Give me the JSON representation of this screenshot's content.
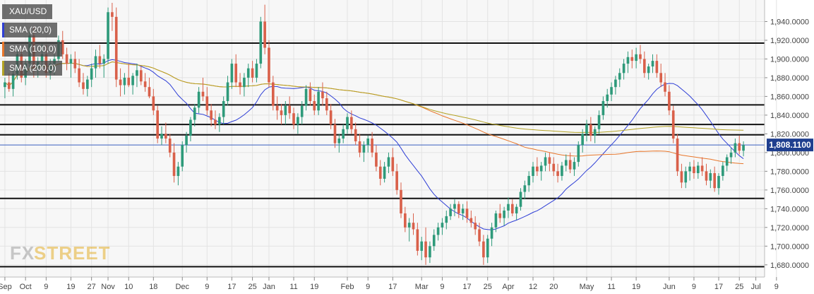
{
  "chart_data": {
    "type": "candlestick",
    "symbol": "XAU/USD",
    "indicators": [
      {
        "name": "SMA (20,0)",
        "color": "#2f3fd6"
      },
      {
        "name": "SMA (100,0)",
        "color": "#e8762a"
      },
      {
        "name": "SMA (200,0)",
        "color": "#b3a224"
      }
    ],
    "last_price_label": "1,808.1100",
    "last_price": 1808.11,
    "ylim": [
      1670,
      1960
    ],
    "y_ticks": [
      {
        "value": 1680,
        "label": "1,680.0000"
      },
      {
        "value": 1700,
        "label": "1,700.0000"
      },
      {
        "value": 1720,
        "label": "1,720.0000"
      },
      {
        "value": 1740,
        "label": "1,740.0000"
      },
      {
        "value": 1760,
        "label": "1,760.0000"
      },
      {
        "value": 1780,
        "label": "1,780.0000"
      },
      {
        "value": 1800,
        "label": "1,800.0000"
      },
      {
        "value": 1820,
        "label": "1,820.0000"
      },
      {
        "value": 1840,
        "label": "1,840.0000"
      },
      {
        "value": 1860,
        "label": "1,860.0000"
      },
      {
        "value": 1880,
        "label": "1,880.0000"
      },
      {
        "value": 1900,
        "label": "1,900.0000"
      },
      {
        "value": 1920,
        "label": "1,920.0000"
      },
      {
        "value": 1940,
        "label": "1,940.0000"
      }
    ],
    "x_ticks": [
      {
        "label": "Sep",
        "bar": 0
      },
      {
        "label": "Oct",
        "bar": 5
      },
      {
        "label": "9",
        "bar": 10
      },
      {
        "label": "19",
        "bar": 16
      },
      {
        "label": "27",
        "bar": 21
      },
      {
        "label": "Nov",
        "bar": 25
      },
      {
        "label": "10",
        "bar": 30
      },
      {
        "label": "18",
        "bar": 36
      },
      {
        "label": "Dec",
        "bar": 43
      },
      {
        "label": "9",
        "bar": 49
      },
      {
        "label": "17",
        "bar": 55
      },
      {
        "label": "25",
        "bar": 60
      },
      {
        "label": "Jan",
        "bar": 64
      },
      {
        "label": "11",
        "bar": 70
      },
      {
        "label": "19",
        "bar": 75
      },
      {
        "label": "Feb",
        "bar": 83
      },
      {
        "label": "9",
        "bar": 88
      },
      {
        "label": "17",
        "bar": 94
      },
      {
        "label": "Mar",
        "bar": 101
      },
      {
        "label": "9",
        "bar": 106
      },
      {
        "label": "17",
        "bar": 112
      },
      {
        "label": "25",
        "bar": 117
      },
      {
        "label": "Apr",
        "bar": 122
      },
      {
        "label": "12",
        "bar": 128
      },
      {
        "label": "20",
        "bar": 133
      },
      {
        "label": "May",
        "bar": 141
      },
      {
        "label": "11",
        "bar": 147
      },
      {
        "label": "19",
        "bar": 153
      },
      {
        "label": "Jun",
        "bar": 161
      },
      {
        "label": "9",
        "bar": 167
      },
      {
        "label": "17",
        "bar": 173
      },
      {
        "label": "25",
        "bar": 178
      },
      {
        "label": "Jul",
        "bar": 182
      },
      {
        "label": "9",
        "bar": 187
      }
    ],
    "horizontal_levels": [
      1917,
      1851,
      1830,
      1819,
      1751,
      1678
    ],
    "price_line": 1808.11,
    "candles": [
      [
        1870,
        1880,
        1858,
        1875
      ],
      [
        1875,
        1885,
        1865,
        1868
      ],
      [
        1868,
        1890,
        1860,
        1884
      ],
      [
        1884,
        1912,
        1878,
        1905
      ],
      [
        1905,
        1910,
        1875,
        1880
      ],
      [
        1880,
        1900,
        1872,
        1895
      ],
      [
        1895,
        1930,
        1890,
        1925
      ],
      [
        1925,
        1935,
        1880,
        1890
      ],
      [
        1890,
        1902,
        1880,
        1897
      ],
      [
        1897,
        1916,
        1890,
        1905
      ],
      [
        1905,
        1915,
        1880,
        1885
      ],
      [
        1885,
        1900,
        1878,
        1895
      ],
      [
        1895,
        1905,
        1883,
        1900
      ],
      [
        1900,
        1925,
        1897,
        1920
      ],
      [
        1920,
        1930,
        1900,
        1905
      ],
      [
        1905,
        1912,
        1888,
        1895
      ],
      [
        1895,
        1905,
        1880,
        1900
      ],
      [
        1900,
        1908,
        1885,
        1890
      ],
      [
        1890,
        1900,
        1870,
        1875
      ],
      [
        1875,
        1885,
        1862,
        1868
      ],
      [
        1868,
        1882,
        1860,
        1878
      ],
      [
        1878,
        1895,
        1870,
        1890
      ],
      [
        1890,
        1910,
        1880,
        1903
      ],
      [
        1903,
        1915,
        1890,
        1895
      ],
      [
        1895,
        1905,
        1880,
        1900
      ],
      [
        1900,
        1955,
        1895,
        1950
      ],
      [
        1950,
        1960,
        1930,
        1945
      ],
      [
        1945,
        1955,
        1870,
        1878
      ],
      [
        1878,
        1890,
        1860,
        1872
      ],
      [
        1872,
        1885,
        1862,
        1880
      ],
      [
        1880,
        1895,
        1870,
        1872
      ],
      [
        1872,
        1885,
        1862,
        1882
      ],
      [
        1882,
        1895,
        1870,
        1888
      ],
      [
        1888,
        1892,
        1872,
        1876
      ],
      [
        1876,
        1885,
        1865,
        1870
      ],
      [
        1870,
        1880,
        1858,
        1860
      ],
      [
        1860,
        1868,
        1840,
        1845
      ],
      [
        1845,
        1850,
        1810,
        1815
      ],
      [
        1815,
        1828,
        1808,
        1820
      ],
      [
        1820,
        1832,
        1810,
        1815
      ],
      [
        1815,
        1820,
        1795,
        1800
      ],
      [
        1800,
        1810,
        1768,
        1775
      ],
      [
        1775,
        1790,
        1765,
        1785
      ],
      [
        1785,
        1812,
        1780,
        1808
      ],
      [
        1808,
        1822,
        1800,
        1818
      ],
      [
        1818,
        1838,
        1812,
        1835
      ],
      [
        1835,
        1852,
        1828,
        1848
      ],
      [
        1848,
        1870,
        1842,
        1865
      ],
      [
        1865,
        1880,
        1855,
        1860
      ],
      [
        1860,
        1870,
        1840,
        1845
      ],
      [
        1845,
        1852,
        1828,
        1835
      ],
      [
        1835,
        1845,
        1825,
        1830
      ],
      [
        1830,
        1842,
        1822,
        1838
      ],
      [
        1838,
        1860,
        1830,
        1855
      ],
      [
        1855,
        1882,
        1850,
        1875
      ],
      [
        1875,
        1900,
        1868,
        1895
      ],
      [
        1895,
        1905,
        1870,
        1875
      ],
      [
        1875,
        1885,
        1862,
        1870
      ],
      [
        1870,
        1885,
        1860,
        1880
      ],
      [
        1880,
        1895,
        1870,
        1890
      ],
      [
        1890,
        1898,
        1875,
        1880
      ],
      [
        1880,
        1900,
        1875,
        1895
      ],
      [
        1895,
        1945,
        1890,
        1940
      ],
      [
        1940,
        1958,
        1905,
        1912
      ],
      [
        1912,
        1920,
        1870,
        1875
      ],
      [
        1875,
        1882,
        1845,
        1850
      ],
      [
        1850,
        1860,
        1835,
        1845
      ],
      [
        1845,
        1852,
        1830,
        1840
      ],
      [
        1840,
        1855,
        1830,
        1850
      ],
      [
        1850,
        1860,
        1836,
        1842
      ],
      [
        1842,
        1848,
        1825,
        1830
      ],
      [
        1830,
        1842,
        1820,
        1838
      ],
      [
        1838,
        1855,
        1830,
        1850
      ],
      [
        1850,
        1872,
        1845,
        1868
      ],
      [
        1868,
        1875,
        1850,
        1855
      ],
      [
        1855,
        1862,
        1840,
        1845
      ],
      [
        1845,
        1870,
        1840,
        1865
      ],
      [
        1865,
        1875,
        1850,
        1858
      ],
      [
        1858,
        1865,
        1840,
        1845
      ],
      [
        1845,
        1852,
        1825,
        1830
      ],
      [
        1830,
        1836,
        1805,
        1810
      ],
      [
        1810,
        1820,
        1800,
        1815
      ],
      [
        1815,
        1830,
        1810,
        1825
      ],
      [
        1825,
        1842,
        1820,
        1838
      ],
      [
        1838,
        1845,
        1820,
        1825
      ],
      [
        1825,
        1832,
        1808,
        1812
      ],
      [
        1812,
        1820,
        1795,
        1800
      ],
      [
        1800,
        1812,
        1790,
        1808
      ],
      [
        1808,
        1818,
        1800,
        1815
      ],
      [
        1815,
        1822,
        1795,
        1800
      ],
      [
        1800,
        1808,
        1780,
        1785
      ],
      [
        1785,
        1792,
        1765,
        1772
      ],
      [
        1772,
        1790,
        1768,
        1785
      ],
      [
        1785,
        1800,
        1778,
        1795
      ],
      [
        1795,
        1805,
        1775,
        1780
      ],
      [
        1780,
        1788,
        1755,
        1760
      ],
      [
        1760,
        1768,
        1730,
        1735
      ],
      [
        1735,
        1742,
        1715,
        1720
      ],
      [
        1720,
        1730,
        1705,
        1725
      ],
      [
        1725,
        1735,
        1712,
        1718
      ],
      [
        1718,
        1725,
        1690,
        1695
      ],
      [
        1695,
        1710,
        1685,
        1705
      ],
      [
        1705,
        1720,
        1680,
        1688
      ],
      [
        1688,
        1705,
        1682,
        1700
      ],
      [
        1700,
        1718,
        1695,
        1712
      ],
      [
        1712,
        1725,
        1706,
        1720
      ],
      [
        1720,
        1730,
        1712,
        1725
      ],
      [
        1725,
        1738,
        1718,
        1732
      ],
      [
        1732,
        1745,
        1728,
        1740
      ],
      [
        1740,
        1750,
        1732,
        1745
      ],
      [
        1745,
        1748,
        1730,
        1735
      ],
      [
        1735,
        1745,
        1728,
        1740
      ],
      [
        1740,
        1748,
        1725,
        1730
      ],
      [
        1730,
        1738,
        1720,
        1725
      ],
      [
        1725,
        1732,
        1712,
        1718
      ],
      [
        1718,
        1725,
        1700,
        1705
      ],
      [
        1705,
        1712,
        1680,
        1688
      ],
      [
        1688,
        1712,
        1682,
        1708
      ],
      [
        1708,
        1725,
        1700,
        1720
      ],
      [
        1720,
        1738,
        1715,
        1735
      ],
      [
        1735,
        1745,
        1725,
        1730
      ],
      [
        1730,
        1742,
        1722,
        1738
      ],
      [
        1738,
        1752,
        1730,
        1745
      ],
      [
        1745,
        1750,
        1732,
        1735
      ],
      [
        1735,
        1745,
        1728,
        1742
      ],
      [
        1742,
        1762,
        1738,
        1758
      ],
      [
        1758,
        1770,
        1750,
        1765
      ],
      [
        1765,
        1780,
        1758,
        1775
      ],
      [
        1775,
        1790,
        1768,
        1785
      ],
      [
        1785,
        1795,
        1775,
        1780
      ],
      [
        1780,
        1790,
        1770,
        1786
      ],
      [
        1786,
        1800,
        1780,
        1795
      ],
      [
        1795,
        1800,
        1780,
        1788
      ],
      [
        1788,
        1795,
        1775,
        1780
      ],
      [
        1780,
        1788,
        1768,
        1775
      ],
      [
        1775,
        1790,
        1770,
        1786
      ],
      [
        1786,
        1798,
        1780,
        1792
      ],
      [
        1792,
        1800,
        1778,
        1782
      ],
      [
        1782,
        1795,
        1775,
        1790
      ],
      [
        1790,
        1812,
        1785,
        1808
      ],
      [
        1808,
        1825,
        1800,
        1820
      ],
      [
        1820,
        1835,
        1812,
        1830
      ],
      [
        1830,
        1838,
        1812,
        1818
      ],
      [
        1818,
        1828,
        1810,
        1825
      ],
      [
        1825,
        1845,
        1820,
        1840
      ],
      [
        1840,
        1860,
        1835,
        1855
      ],
      [
        1855,
        1868,
        1848,
        1862
      ],
      [
        1862,
        1875,
        1855,
        1870
      ],
      [
        1870,
        1882,
        1862,
        1878
      ],
      [
        1878,
        1890,
        1870,
        1885
      ],
      [
        1885,
        1900,
        1878,
        1895
      ],
      [
        1895,
        1908,
        1885,
        1902
      ],
      [
        1902,
        1910,
        1890,
        1898
      ],
      [
        1898,
        1912,
        1890,
        1905
      ],
      [
        1905,
        1915,
        1895,
        1900
      ],
      [
        1900,
        1908,
        1880,
        1885
      ],
      [
        1885,
        1895,
        1878,
        1892
      ],
      [
        1892,
        1905,
        1885,
        1898
      ],
      [
        1898,
        1905,
        1880,
        1885
      ],
      [
        1885,
        1895,
        1870,
        1875
      ],
      [
        1875,
        1885,
        1860,
        1865
      ],
      [
        1865,
        1872,
        1840,
        1845
      ],
      [
        1845,
        1850,
        1810,
        1815
      ],
      [
        1815,
        1820,
        1775,
        1780
      ],
      [
        1780,
        1788,
        1762,
        1768
      ],
      [
        1768,
        1785,
        1762,
        1780
      ],
      [
        1780,
        1790,
        1770,
        1785
      ],
      [
        1785,
        1792,
        1772,
        1778
      ],
      [
        1778,
        1790,
        1772,
        1786
      ],
      [
        1786,
        1795,
        1775,
        1780
      ],
      [
        1780,
        1788,
        1765,
        1770
      ],
      [
        1770,
        1782,
        1762,
        1778
      ],
      [
        1778,
        1785,
        1758,
        1762
      ],
      [
        1762,
        1778,
        1755,
        1775
      ],
      [
        1775,
        1790,
        1770,
        1786
      ],
      [
        1786,
        1798,
        1780,
        1795
      ],
      [
        1795,
        1805,
        1788,
        1800
      ],
      [
        1800,
        1815,
        1795,
        1810
      ],
      [
        1810,
        1818,
        1798,
        1802
      ],
      [
        1802,
        1812,
        1796,
        1808
      ]
    ]
  },
  "logo": {
    "text_fx": "FX",
    "text_street": "STREET"
  },
  "colors": {
    "up": "#2e9a7a",
    "down": "#d9604a",
    "grid": "#e3e3e3",
    "level": "#111111",
    "price_line": "#3a5fbf",
    "price_tag": "#1f3f8f"
  }
}
